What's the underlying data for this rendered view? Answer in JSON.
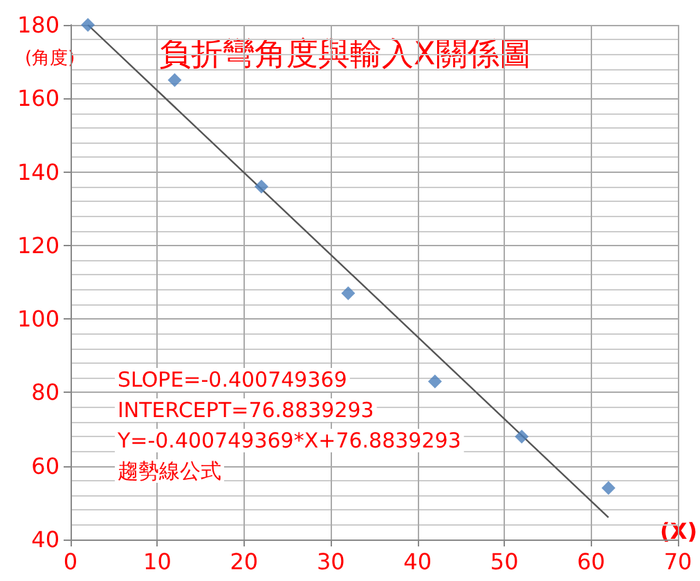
{
  "chart_data": {
    "type": "scatter",
    "title": "負折彎角度與輸入X關係圖",
    "xlabel": "(X)",
    "ylabel": "(角度)",
    "annotations": [
      "SLOPE=-0.400749369",
      "INTERCEPT=76.8839293",
      "Y=-0.400749369*X+76.8839293",
      "趨勢線公式"
    ],
    "x": [
      2,
      12,
      22,
      32,
      42,
      52,
      62
    ],
    "series": [
      {
        "color": "#4a7ebb",
        "values": [
          180,
          165,
          136,
          107,
          83,
          68,
          54
        ],
        "marker": "diamond"
      },
      {
        "type": "line",
        "color": "#555555",
        "x": [
          2,
          62
        ],
        "values": [
          180,
          46
        ],
        "marker": "none",
        "line_style": "solid"
      }
    ],
    "xlim": [
      0,
      70
    ],
    "xticks": [
      0,
      10,
      20,
      30,
      40,
      50,
      60,
      70
    ],
    "ylim": [
      40,
      180
    ],
    "yticks": [
      40,
      60,
      80,
      100,
      120,
      140,
      160,
      180
    ],
    "grid": true
  }
}
